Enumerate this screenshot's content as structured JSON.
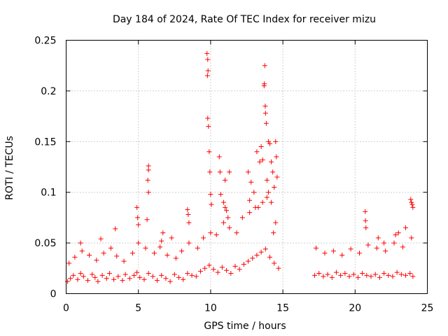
{
  "chart_data": {
    "type": "scatter",
    "title": "Day 184 of 2024, Rate Of TEC Index for receiver mizu",
    "xlabel": "GPS time / hours",
    "ylabel": "ROTI / TECUs",
    "xlim": [
      0,
      25
    ],
    "ylim": [
      0,
      0.25
    ],
    "x_ticks": [
      0,
      5,
      10,
      15,
      20,
      25
    ],
    "x_tick_labels": [
      "0",
      "5",
      "10",
      "15",
      "20",
      "25"
    ],
    "y_ticks": [
      0,
      0.05,
      0.1,
      0.15,
      0.2,
      0.25
    ],
    "y_tick_labels": [
      "0",
      "0.05",
      "0.1",
      "0.15",
      "0.2",
      "0.25"
    ],
    "grid": true,
    "legend": "none",
    "marker": "plus",
    "color": "#ff0000",
    "series": [
      {
        "x": [
          0.1,
          0.3,
          0.5,
          0.8,
          1.0,
          1.2,
          1.5,
          1.8,
          2.0,
          2.2,
          2.5,
          2.8,
          3.0,
          3.3,
          3.6,
          3.9,
          4.1,
          4.4,
          4.7,
          4.9,
          5.1,
          5.4,
          5.7,
          6.0,
          6.3,
          6.6,
          6.9,
          7.2,
          7.5,
          7.8,
          8.1,
          8.4,
          8.7,
          9.0,
          9.3,
          9.6,
          9.9,
          10.2,
          10.5,
          10.8,
          11.1,
          11.4,
          11.7,
          12.0,
          12.3,
          12.6,
          12.9,
          13.2,
          13.5,
          13.8,
          14.1,
          14.4,
          14.7,
          17.2,
          17.5,
          17.8,
          18.1,
          18.4,
          18.7,
          19.0,
          19.3,
          19.6,
          19.9,
          20.2,
          20.5,
          20.8,
          21.1,
          21.4,
          21.7,
          22.0,
          22.3,
          22.6,
          22.9,
          23.2,
          23.5,
          23.8,
          24.0
        ],
        "y": [
          0.012,
          0.015,
          0.018,
          0.014,
          0.02,
          0.017,
          0.013,
          0.019,
          0.016,
          0.012,
          0.018,
          0.015,
          0.02,
          0.014,
          0.017,
          0.013,
          0.019,
          0.015,
          0.018,
          0.021,
          0.016,
          0.014,
          0.02,
          0.017,
          0.013,
          0.018,
          0.015,
          0.012,
          0.019,
          0.016,
          0.014,
          0.02,
          0.018,
          0.017,
          0.022,
          0.025,
          0.028,
          0.024,
          0.021,
          0.026,
          0.023,
          0.02,
          0.027,
          0.024,
          0.029,
          0.032,
          0.035,
          0.038,
          0.041,
          0.044,
          0.036,
          0.03,
          0.025,
          0.018,
          0.02,
          0.017,
          0.019,
          0.016,
          0.021,
          0.018,
          0.02,
          0.017,
          0.019,
          0.016,
          0.02,
          0.018,
          0.017,
          0.019,
          0.016,
          0.02,
          0.018,
          0.017,
          0.021,
          0.019,
          0.018,
          0.02,
          0.017
        ]
      },
      {
        "x": [
          0.2,
          0.6,
          1.1,
          1.6,
          2.1,
          2.6,
          3.1,
          3.5,
          4.0,
          4.6,
          5.0,
          5.5,
          6.1,
          6.5,
          7.0,
          7.6,
          8.0,
          8.5,
          9.1,
          9.5,
          10.0,
          10.4,
          10.9,
          11.3,
          11.8,
          12.2,
          12.7,
          13.1,
          13.6,
          14.0,
          14.5,
          17.3,
          17.9,
          18.5,
          19.1,
          19.7,
          20.3,
          20.9,
          21.5,
          22.1,
          22.7,
          23.3,
          23.9
        ],
        "y": [
          0.03,
          0.036,
          0.042,
          0.038,
          0.033,
          0.04,
          0.045,
          0.037,
          0.032,
          0.04,
          0.05,
          0.045,
          0.04,
          0.046,
          0.038,
          0.035,
          0.042,
          0.05,
          0.045,
          0.055,
          0.06,
          0.058,
          0.07,
          0.065,
          0.06,
          0.075,
          0.08,
          0.085,
          0.09,
          0.1,
          0.07,
          0.045,
          0.04,
          0.042,
          0.038,
          0.044,
          0.04,
          0.048,
          0.045,
          0.042,
          0.05,
          0.046,
          0.055
        ]
      },
      {
        "x": [
          5.7,
          5.7,
          5.65,
          5.7,
          5.6,
          4.9,
          4.95,
          5.0,
          9.75,
          9.8,
          9.82,
          9.78,
          9.8,
          9.85,
          9.9,
          9.95,
          10.0,
          10.05,
          10.6,
          10.65,
          10.7,
          10.9,
          11.0,
          11.1,
          11.3,
          11.0,
          11.2,
          12.6,
          12.7,
          12.8,
          13.0,
          13.2,
          13.4,
          13.5,
          13.6,
          13.7,
          13.72,
          13.75,
          13.78,
          13.8,
          13.85,
          13.9,
          14.0,
          14.1,
          14.2,
          14.3,
          14.4,
          14.5,
          14.55,
          14.6,
          13.9,
          14.2,
          13.3,
          14.35,
          8.4,
          8.45,
          8.5,
          6.6,
          6.7,
          7.3,
          20.7,
          20.72,
          20.75,
          21.6,
          22.0,
          22.8,
          23.0,
          23.5,
          23.85,
          23.9,
          23.95,
          24.0,
          3.4,
          1.0,
          2.4
        ],
        "y": [
          0.126,
          0.122,
          0.112,
          0.1,
          0.073,
          0.085,
          0.075,
          0.068,
          0.237,
          0.231,
          0.22,
          0.215,
          0.173,
          0.165,
          0.14,
          0.12,
          0.098,
          0.088,
          0.135,
          0.12,
          0.098,
          0.09,
          0.085,
          0.082,
          0.12,
          0.112,
          0.075,
          0.12,
          0.092,
          0.11,
          0.1,
          0.14,
          0.13,
          0.145,
          0.132,
          0.205,
          0.207,
          0.225,
          0.185,
          0.178,
          0.168,
          0.112,
          0.15,
          0.148,
          0.13,
          0.12,
          0.105,
          0.15,
          0.135,
          0.115,
          0.095,
          0.09,
          0.085,
          0.06,
          0.083,
          0.078,
          0.07,
          0.052,
          0.06,
          0.055,
          0.081,
          0.072,
          0.065,
          0.055,
          0.05,
          0.058,
          0.06,
          0.065,
          0.093,
          0.09,
          0.088,
          0.085,
          0.064,
          0.05,
          0.054
        ]
      }
    ]
  }
}
